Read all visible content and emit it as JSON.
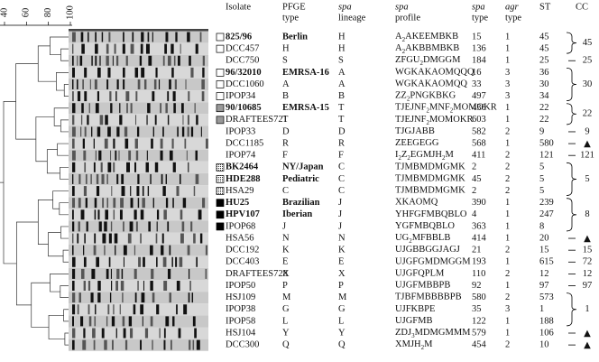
{
  "dendrogram_scale": [
    40,
    60,
    80,
    100
  ],
  "columns": [
    [
      "Isolate"
    ],
    [
      "PFGE",
      "type"
    ],
    [
      "spa",
      "lineage"
    ],
    [
      "spa",
      "profile"
    ],
    [
      "spa",
      "type"
    ],
    [
      "agr",
      "type"
    ],
    [
      "ST"
    ],
    [
      "CC"
    ]
  ],
  "rows": [
    {
      "marker": "open",
      "bold": true,
      "cells": [
        "825/96",
        "Berlin",
        "H",
        "A2AKEEMBKB",
        "15",
        "1",
        "45"
      ]
    },
    {
      "marker": "open",
      "bold": false,
      "cells": [
        "DCC457",
        "H",
        "H",
        "A2AKBBMBKB",
        "136",
        "1",
        "45"
      ]
    },
    {
      "marker": "none",
      "bold": false,
      "cells": [
        "DCC750",
        "S",
        "S",
        "ZFGU2DMGGM",
        "184",
        "1",
        "25"
      ]
    },
    {
      "marker": "open",
      "bold": true,
      "cells": [
        "96/32010",
        "EMRSA-16",
        "A",
        "WGKAKAOMQQQ",
        "16",
        "3",
        "36"
      ]
    },
    {
      "marker": "open",
      "bold": false,
      "cells": [
        "DCC1060",
        "A",
        "A",
        "WGKAKAOMQQ",
        "33",
        "3",
        "30"
      ]
    },
    {
      "marker": "open",
      "bold": false,
      "cells": [
        "IPOP34",
        "B",
        "B",
        "ZZ2PNGKBKG",
        "497",
        "3",
        "34"
      ]
    },
    {
      "marker": "gray",
      "bold": true,
      "cells": [
        "90/10685",
        "EMRSA-15",
        "T",
        "TJEJNF2MNF2MOMOKR",
        "436",
        "1",
        "22"
      ]
    },
    {
      "marker": "gray",
      "bold": false,
      "cells": [
        "DRAFTEES721",
        "T",
        "T",
        "TJEJNF2MOMOKR",
        "603",
        "1",
        "22"
      ]
    },
    {
      "marker": "none",
      "bold": false,
      "cells": [
        "IPOP33",
        "D",
        "D",
        "TJGJABB",
        "582",
        "2",
        "9"
      ]
    },
    {
      "marker": "none",
      "bold": false,
      "cells": [
        "DCC1185",
        "R",
        "R",
        "ZEEGEGG",
        "568",
        "1",
        "580"
      ]
    },
    {
      "marker": "none",
      "bold": false,
      "cells": [
        "IPOP74",
        "F",
        "F",
        "I2Z2EGMJH2M",
        "411",
        "2",
        "121"
      ]
    },
    {
      "marker": "dotted",
      "bold": true,
      "cells": [
        "BK2464",
        "NY/Japan",
        "C",
        "TJMBMDMGMK",
        "2",
        "2",
        "5"
      ]
    },
    {
      "marker": "dotted",
      "bold": true,
      "cells": [
        "HDE288",
        "Pediatric",
        "C",
        "TJMBMDMGMK",
        "45",
        "2",
        "5"
      ]
    },
    {
      "marker": "dotted",
      "bold": false,
      "cells": [
        "HSA29",
        "C",
        "C",
        "TJMBMDMGMK",
        "2",
        "2",
        "5"
      ]
    },
    {
      "marker": "black",
      "bold": true,
      "cells": [
        "HU25",
        "Brazilian",
        "J",
        "XKAOMQ",
        "390",
        "1",
        "239"
      ]
    },
    {
      "marker": "black",
      "bold": true,
      "cells": [
        "HPV107",
        "Iberian",
        "J",
        "YHFGFMBQBLO",
        "4",
        "1",
        "247"
      ]
    },
    {
      "marker": "black",
      "bold": false,
      "cells": [
        "IPOP68",
        "J",
        "J",
        "YGFMBQBLO",
        "363",
        "1",
        "8"
      ]
    },
    {
      "marker": "none",
      "bold": false,
      "cells": [
        "HSA56",
        "N",
        "N",
        "UG2MFBBLB",
        "414",
        "1",
        "20"
      ]
    },
    {
      "marker": "none",
      "bold": false,
      "cells": [
        "DCC192",
        "K",
        "K",
        "UJGBBGGJAGJ",
        "21",
        "2",
        "15"
      ]
    },
    {
      "marker": "none",
      "bold": false,
      "cells": [
        "DCC403",
        "E",
        "E",
        "UJGFGMDMGGM",
        "193",
        "1",
        "615"
      ]
    },
    {
      "marker": "none",
      "bold": false,
      "cells": [
        "DRAFTEES728",
        "X",
        "X",
        "UJGFQPLM",
        "110",
        "2",
        "12"
      ]
    },
    {
      "marker": "none",
      "bold": false,
      "cells": [
        "IPOP50",
        "P",
        "P",
        "UJGFMBBPB",
        "92",
        "1",
        "97"
      ]
    },
    {
      "marker": "none",
      "bold": false,
      "cells": [
        "HSJ109",
        "M",
        "M",
        "TJBFMBBBBPB",
        "580",
        "2",
        "573"
      ]
    },
    {
      "marker": "none",
      "bold": false,
      "cells": [
        "IPOP38",
        "G",
        "G",
        "UJFKBPE",
        "35",
        "3",
        "1"
      ]
    },
    {
      "marker": "none",
      "bold": false,
      "cells": [
        "IPOP58",
        "L",
        "L",
        "UJGFMB",
        "122",
        "1",
        "188"
      ]
    },
    {
      "marker": "none",
      "bold": false,
      "cells": [
        "HSJ104",
        "Y",
        "Y",
        "ZDJ3MDMGMMM",
        "579",
        "1",
        "106"
      ]
    },
    {
      "marker": "none",
      "bold": false,
      "cells": [
        "DCC300",
        "Q",
        "Q",
        "XMJH2M",
        "454",
        "2",
        "10"
      ]
    }
  ],
  "cc_groups": [
    {
      "size": 2,
      "label": "45"
    },
    {
      "size": 1,
      "label": "25"
    },
    {
      "size": 3,
      "label": "30"
    },
    {
      "size": 2,
      "label": "22"
    },
    {
      "size": 1,
      "label": "9"
    },
    {
      "size": 1,
      "label": "▲"
    },
    {
      "size": 1,
      "label": "121"
    },
    {
      "size": 3,
      "label": "5"
    },
    {
      "size": 3,
      "label": "8"
    },
    {
      "size": 1,
      "label": "▲"
    },
    {
      "size": 1,
      "label": "15"
    },
    {
      "size": 1,
      "label": "72"
    },
    {
      "size": 1,
      "label": "12"
    },
    {
      "size": 1,
      "label": "97"
    },
    {
      "size": 3,
      "label": "1"
    },
    {
      "size": 1,
      "label": "▲"
    },
    {
      "size": 1,
      "label": "▲"
    }
  ]
}
